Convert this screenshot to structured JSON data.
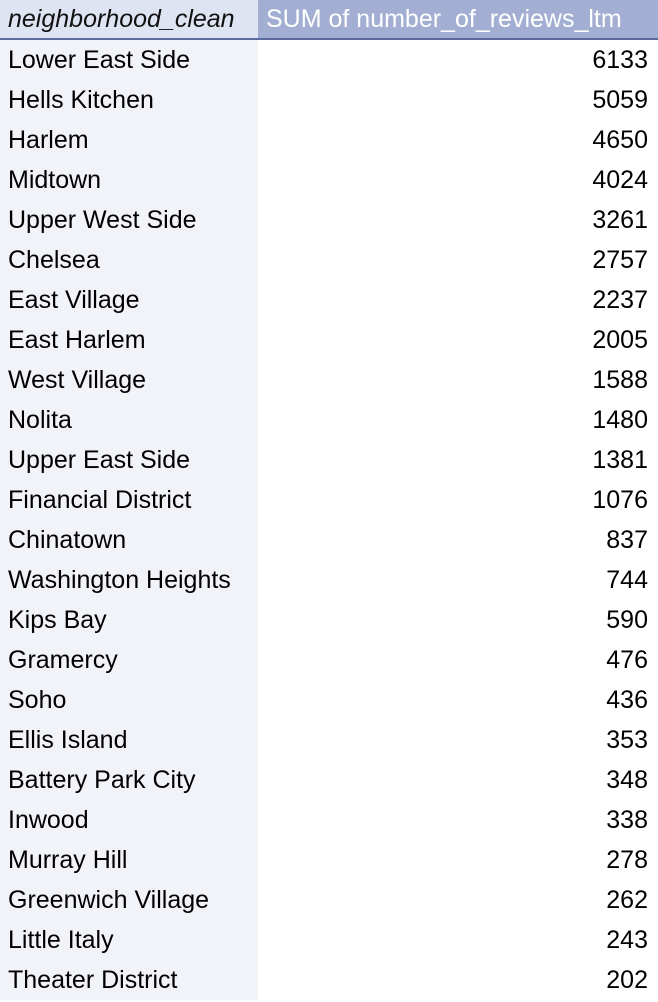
{
  "table": {
    "headers": {
      "row_field": "neighborhood_clean",
      "value_field": "SUM of number_of_reviews_ltm"
    },
    "rows": [
      {
        "neighborhood": "Lower East Side",
        "sum": "6133"
      },
      {
        "neighborhood": "Hells Kitchen",
        "sum": "5059"
      },
      {
        "neighborhood": "Harlem",
        "sum": "4650"
      },
      {
        "neighborhood": "Midtown",
        "sum": "4024"
      },
      {
        "neighborhood": "Upper West Side",
        "sum": "3261"
      },
      {
        "neighborhood": "Chelsea",
        "sum": "2757"
      },
      {
        "neighborhood": "East Village",
        "sum": "2237"
      },
      {
        "neighborhood": "East Harlem",
        "sum": "2005"
      },
      {
        "neighborhood": "West Village",
        "sum": "1588"
      },
      {
        "neighborhood": "Nolita",
        "sum": "1480"
      },
      {
        "neighborhood": "Upper East Side",
        "sum": "1381"
      },
      {
        "neighborhood": "Financial District",
        "sum": "1076"
      },
      {
        "neighborhood": "Chinatown",
        "sum": "837"
      },
      {
        "neighborhood": "Washington Heights",
        "sum": "744"
      },
      {
        "neighborhood": "Kips Bay",
        "sum": "590"
      },
      {
        "neighborhood": "Gramercy",
        "sum": "476"
      },
      {
        "neighborhood": "Soho",
        "sum": "436"
      },
      {
        "neighborhood": "Ellis Island",
        "sum": "353"
      },
      {
        "neighborhood": "Battery Park City",
        "sum": "348"
      },
      {
        "neighborhood": "Inwood",
        "sum": "338"
      },
      {
        "neighborhood": "Murray Hill",
        "sum": "278"
      },
      {
        "neighborhood": "Greenwich Village",
        "sum": "262"
      },
      {
        "neighborhood": "Little Italy",
        "sum": "243"
      },
      {
        "neighborhood": "Theater District",
        "sum": "202"
      }
    ]
  },
  "colors": {
    "header_left_bg": "#dfe4f2",
    "header_right_bg": "#a2afd2",
    "header_border": "#5b6b9d",
    "row_label_bg": "#f1f3f9",
    "row_value_bg": "#ffffff"
  }
}
